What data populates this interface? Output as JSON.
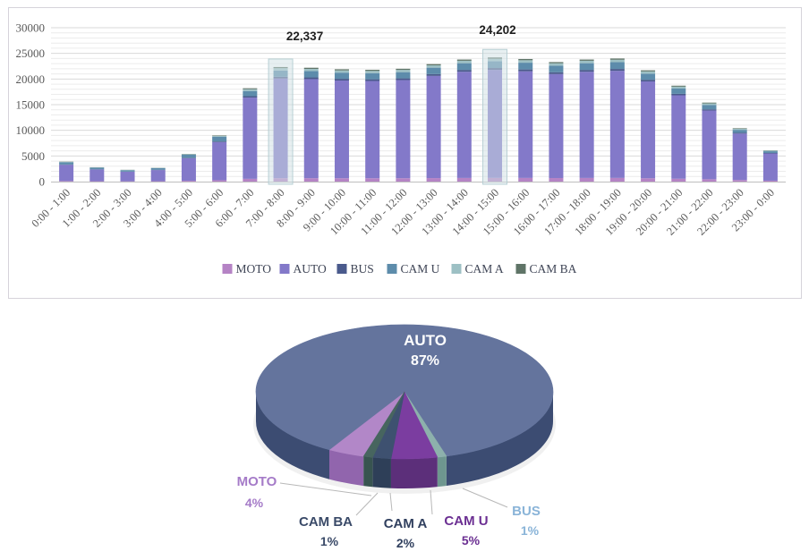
{
  "chart_data": [
    {
      "type": "bar",
      "stacked": true,
      "title": "",
      "xlabel": "",
      "ylabel": "",
      "ylim": [
        0,
        30000
      ],
      "y_ticks": [
        0,
        5000,
        10000,
        15000,
        20000,
        25000,
        30000
      ],
      "grid": {
        "minor_step": 1000,
        "major_step": 5000,
        "minor_color": "#ececec",
        "major_color": "#d9d9d9",
        "baseline_color": "#bfbfbf"
      },
      "axis_text_color": "#595959",
      "legend_position": "bottom",
      "legend_text_color": "#3f4556",
      "categories": [
        "0:00 - 1:00",
        "1:00 - 2:00",
        "2:00 - 3:00",
        "3:00 - 4:00",
        "4:00 - 5:00",
        "5:00 - 6:00",
        "6:00 - 7:00",
        "7:00 - 8:00",
        "8:00 - 9:00",
        "9:00 - 10:00",
        "10:00 - 11:00",
        "11:00 - 12:00",
        "12:00 - 13:00",
        "13:00 - 14:00",
        "14:00 - 15:00",
        "15:00 - 16:00",
        "16:00 - 17:00",
        "17:00 - 18:00",
        "18:00 - 19:00",
        "19:00 - 20:00",
        "20:00 - 21:00",
        "21:00 - 22:00",
        "22:00 - 23:00",
        "23:00 - 0:00"
      ],
      "series": [
        {
          "name": "MOTO",
          "color": "#b583c5",
          "values": [
            117,
            84,
            69,
            81,
            162,
            270,
            546,
            670,
            666,
            657,
            654,
            660,
            687,
            714,
            726,
            717,
            699,
            714,
            720,
            651,
            561,
            462,
            312,
            183
          ]
        },
        {
          "name": "AUTO",
          "color": "#8379c9",
          "values": [
            3157,
            2270,
            1847,
            2167,
            4395,
            7425,
            15834,
            19433,
            19314,
            19053,
            18966,
            19140,
            19923,
            20706,
            21056,
            20793,
            20271,
            20706,
            20880,
            18879,
            16269,
            13398,
            9048,
            5307
          ]
        },
        {
          "name": "BUS",
          "color": "#4a5a8c",
          "values": [
            59,
            42,
            35,
            41,
            81,
            135,
            273,
            335,
            333,
            329,
            327,
            330,
            344,
            357,
            363,
            359,
            350,
            357,
            360,
            326,
            281,
            231,
            156,
            92
          ]
        },
        {
          "name": "CAM U",
          "color": "#5d8cab",
          "values": [
            450,
            320,
            280,
            330,
            600,
            900,
            1001,
            1229,
            1221,
            1205,
            1199,
            1210,
            1260,
            1309,
            1331,
            1315,
            1282,
            1309,
            1320,
            1194,
            1029,
            847,
            572,
            336
          ]
        },
        {
          "name": "CAM A",
          "color": "#9dc0c4",
          "values": [
            78,
            56,
            46,
            54,
            108,
            180,
            364,
            447,
            444,
            438,
            436,
            440,
            458,
            476,
            484,
            478,
            466,
            476,
            480,
            434,
            374,
            308,
            208,
            122
          ]
        },
        {
          "name": "CAM BA",
          "color": "#5f7467",
          "values": [
            39,
            28,
            23,
            27,
            54,
            90,
            182,
            223,
            222,
            219,
            218,
            220,
            229,
            238,
            242,
            239,
            233,
            238,
            240,
            217,
            187,
            154,
            104,
            61
          ]
        }
      ],
      "annotations": [
        {
          "index": 7,
          "text": "22,337",
          "value": 22337,
          "highlighted": true
        },
        {
          "index": 14,
          "text": "24,202",
          "value": 24202,
          "highlighted": true
        }
      ],
      "annotation_text_color": "#1f1f1f",
      "highlight_fill": "#cfe0e4",
      "highlight_stroke": "#b2ccd1"
    },
    {
      "type": "pie",
      "title": "",
      "start_angle_clockwise_from_12": 196,
      "leader_line_color": "#b8b8b8",
      "slices": [
        {
          "name": "MOTO",
          "pct": 4,
          "pct_label": "4%",
          "top_color": "#b287c8",
          "side_color": "#9165ad",
          "label_color": "#a57bc8"
        },
        {
          "name": "AUTO",
          "pct": 87,
          "pct_label": "87%",
          "top_color": "#64749d",
          "side_color": "#3c4c72",
          "label_color": "#ffffff"
        },
        {
          "name": "BUS",
          "pct": 1,
          "pct_label": "1%",
          "top_color": "#8db1ac",
          "side_color": "#6e968f",
          "label_color": "#8ab4d8"
        },
        {
          "name": "CAM U",
          "pct": 5,
          "pct_label": "5%",
          "top_color": "#7b3da0",
          "side_color": "#5c2f7a",
          "label_color": "#6b2f92"
        },
        {
          "name": "CAM A",
          "pct": 2,
          "pct_label": "2%",
          "top_color": "#3e5170",
          "side_color": "#2e3f58",
          "label_color": "#31405f"
        },
        {
          "name": "CAM BA",
          "pct": 1,
          "pct_label": "1%",
          "top_color": "#47655f",
          "side_color": "#385450",
          "label_color": "#3a4a68"
        }
      ]
    }
  ]
}
